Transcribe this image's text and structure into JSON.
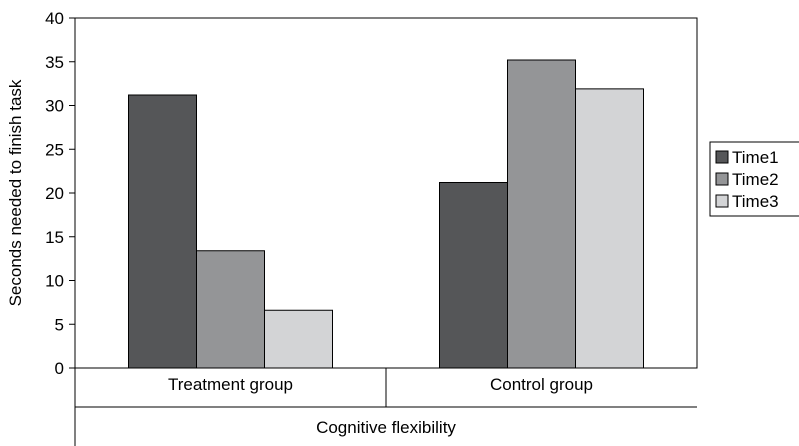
{
  "chart_data": {
    "type": "bar",
    "title": "",
    "ylabel": "Seconds needed to finish task",
    "xlabel": "Cognitive flexibility",
    "ylim": [
      0,
      40
    ],
    "yticks": [
      "0",
      "5",
      "10",
      "15",
      "20",
      "25",
      "30",
      "35",
      "40"
    ],
    "grid": false,
    "legend_position": "right",
    "categories": [
      "Treatment group",
      "Control group"
    ],
    "series": [
      {
        "name": "Time1",
        "color": "#555658",
        "values": [
          31.2,
          21.2
        ]
      },
      {
        "name": "Time2",
        "color": "#949597",
        "values": [
          13.4,
          35.2
        ]
      },
      {
        "name": "Time3",
        "color": "#d3d4d6",
        "values": [
          6.6,
          31.9
        ]
      }
    ]
  }
}
